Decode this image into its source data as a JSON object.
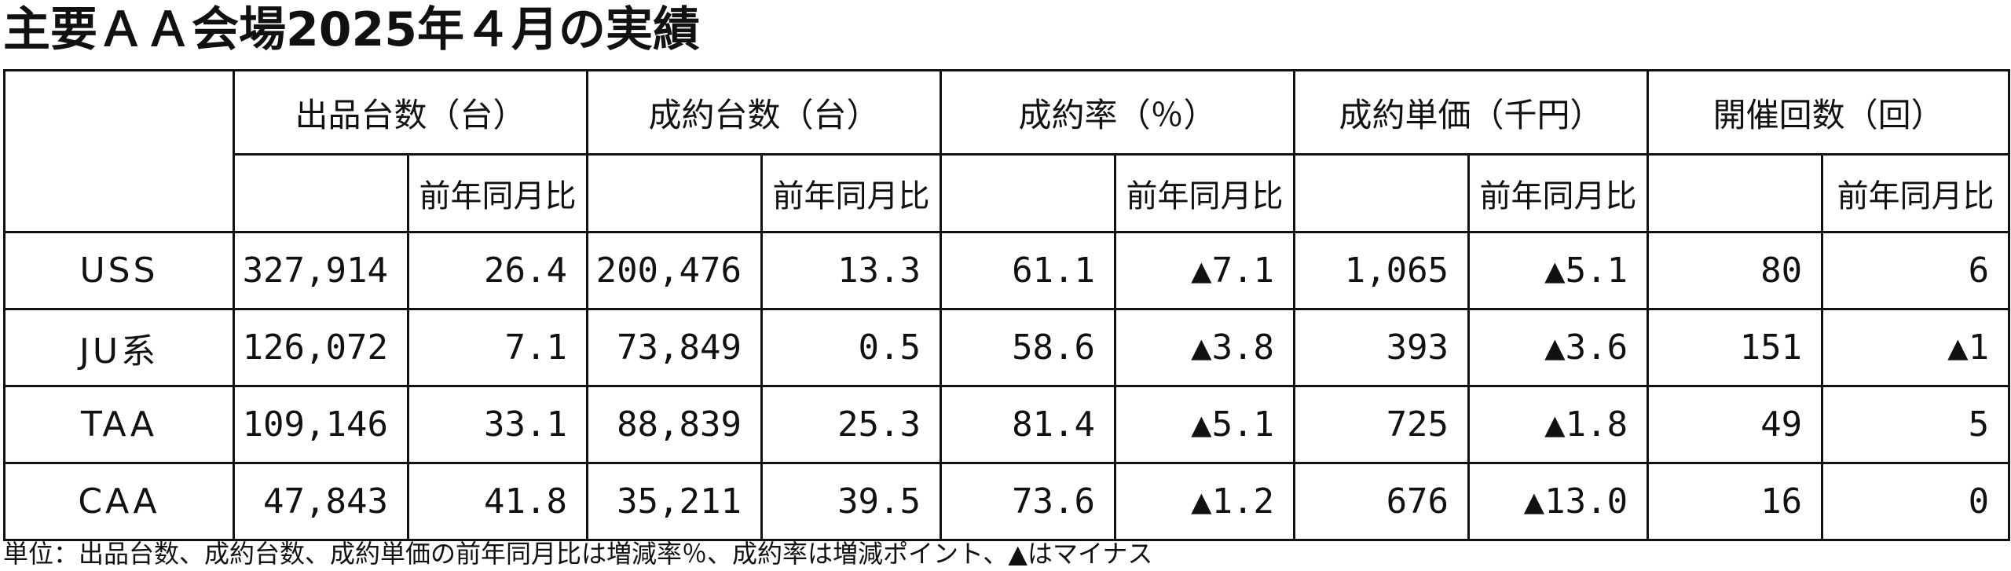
{
  "title": "主要ＡＡ会場2025年４月の実績",
  "headers": {
    "groups": [
      "出品台数（台）",
      "成約台数（台）",
      "成約率（％）",
      "成約単価（千円）",
      "開催回数（回）"
    ],
    "yoy": "前年同月比"
  },
  "rows": [
    {
      "name": "USS",
      "values": [
        "327,914",
        "26.4",
        "200,476",
        "13.3",
        "61.1",
        "▲7.1",
        "1,065",
        "▲5.1",
        "80",
        "6"
      ]
    },
    {
      "name": "JU系",
      "values": [
        "126,072",
        "7.1",
        "73,849",
        "0.5",
        "58.6",
        "▲3.8",
        "393",
        "▲3.6",
        "151",
        "▲1"
      ]
    },
    {
      "name": "TAA",
      "values": [
        "109,146",
        "33.1",
        "88,839",
        "25.3",
        "81.4",
        "▲5.1",
        "725",
        "▲1.8",
        "49",
        "5"
      ]
    },
    {
      "name": "CAA",
      "values": [
        "47,843",
        "41.8",
        "35,211",
        "39.5",
        "73.6",
        "▲1.2",
        "676",
        "▲13.0",
        "16",
        "0"
      ]
    }
  ],
  "footnote": "単位：出品台数、成約台数、成約単価の前年同月比は増減率％、成約率は増減ポイント、▲はマイナス"
}
